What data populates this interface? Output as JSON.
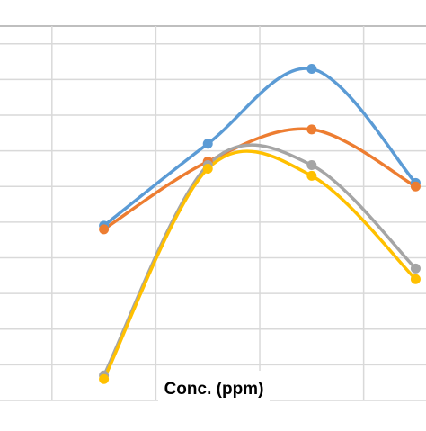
{
  "chart_data": {
    "type": "line",
    "title": "",
    "xlabel": "Conc. (ppm)",
    "ylabel": "",
    "x": [
      1,
      2,
      3,
      4
    ],
    "xlim": [
      0,
      4.1
    ],
    "ylim": [
      0,
      10.5
    ],
    "smooth": true,
    "grid": true,
    "series": [
      {
        "color": "#5b9bd5",
        "values": [
          4.9,
          7.2,
          9.3,
          6.1
        ]
      },
      {
        "color": "#ed7d31",
        "values": [
          4.8,
          6.7,
          7.6,
          6.0
        ]
      },
      {
        "color": "#a5a5a5",
        "values": [
          0.7,
          6.6,
          6.6,
          3.7
        ]
      },
      {
        "color": "#ffc000",
        "values": [
          0.6,
          6.5,
          6.3,
          3.4
        ]
      }
    ]
  }
}
